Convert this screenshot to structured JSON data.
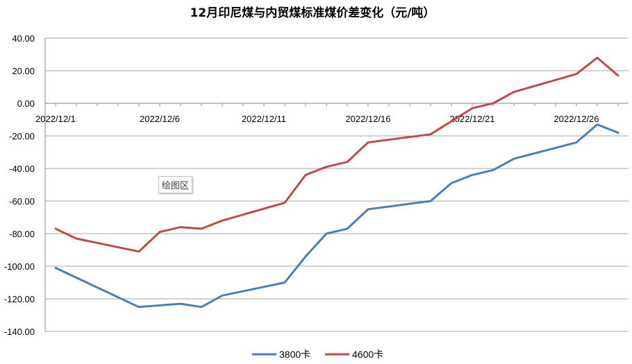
{
  "chart_data": {
    "type": "line",
    "title": "12月印尼煤与内贸煤标准煤价差变化（元/吨）",
    "xlabel": "",
    "ylabel": "",
    "ylim": [
      -140,
      40
    ],
    "y_ticks": [
      "40.00",
      "20.00",
      "0.00",
      "-20.00",
      "-40.00",
      "-60.00",
      "-80.00",
      "-100.00",
      "-120.00",
      "-140.00"
    ],
    "x_tick_labels": [
      "2022/12/1",
      "2022/12/6",
      "2022/12/11",
      "2022/12/16",
      "2022/12/21",
      "2022/12/26"
    ],
    "grid": true,
    "legend_position": "bottom",
    "annotation": "绘图区",
    "series": [
      {
        "name": "3800卡",
        "color": "#4a7ebb",
        "points": [
          [
            1,
            -101
          ],
          [
            5,
            -125
          ],
          [
            7,
            -123
          ],
          [
            8,
            -125
          ],
          [
            9,
            -118
          ],
          [
            12,
            -110
          ],
          [
            13,
            -94
          ],
          [
            14,
            -80
          ],
          [
            15,
            -77
          ],
          [
            16,
            -65
          ],
          [
            19,
            -60
          ],
          [
            20,
            -49
          ],
          [
            21,
            -44
          ],
          [
            22,
            -41
          ],
          [
            23,
            -34
          ],
          [
            26,
            -24
          ],
          [
            27,
            -13
          ],
          [
            28,
            -18
          ]
        ]
      },
      {
        "name": "4600卡",
        "color": "#be4b48",
        "points": [
          [
            1,
            -77
          ],
          [
            2,
            -83
          ],
          [
            5,
            -91
          ],
          [
            6,
            -79
          ],
          [
            7,
            -76
          ],
          [
            8,
            -77
          ],
          [
            9,
            -72
          ],
          [
            12,
            -61
          ],
          [
            13,
            -44
          ],
          [
            14,
            -39
          ],
          [
            15,
            -36
          ],
          [
            16,
            -24
          ],
          [
            19,
            -19
          ],
          [
            21,
            -3
          ],
          [
            22,
            0
          ],
          [
            23,
            7
          ],
          [
            26,
            18
          ],
          [
            27,
            28
          ],
          [
            28,
            17
          ]
        ]
      }
    ]
  }
}
